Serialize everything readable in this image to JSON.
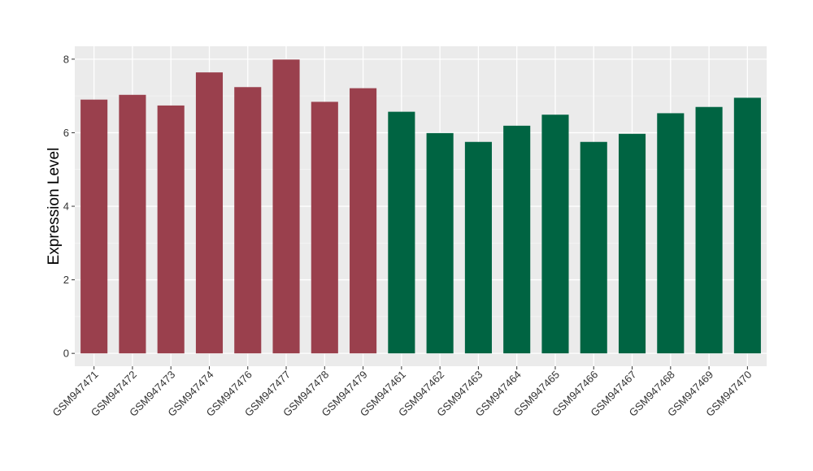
{
  "chart_data": {
    "type": "bar",
    "title": "",
    "xlabel": "",
    "ylabel": "Expression Level",
    "ylim": [
      -0.35,
      8.35
    ],
    "yticks": [
      0,
      2,
      4,
      6,
      8
    ],
    "grid": true,
    "background": "#EBEBEB",
    "categories": [
      "GSM947471",
      "GSM947472",
      "GSM947473",
      "GSM947474",
      "GSM947476",
      "GSM947477",
      "GSM947478",
      "GSM947479",
      "GSM947461",
      "GSM947462",
      "GSM947463",
      "GSM947464",
      "GSM947465",
      "GSM947466",
      "GSM947467",
      "GSM947468",
      "GSM947469",
      "GSM947470"
    ],
    "values": [
      6.9,
      7.03,
      6.74,
      7.64,
      7.24,
      7.99,
      6.84,
      7.21,
      6.57,
      5.99,
      5.75,
      6.19,
      6.49,
      5.75,
      5.97,
      6.53,
      6.7,
      6.95
    ],
    "bar_colors": [
      "#9A404D",
      "#9A404D",
      "#9A404D",
      "#9A404D",
      "#9A404D",
      "#9A404D",
      "#9A404D",
      "#9A404D",
      "#006442",
      "#006442",
      "#006442",
      "#006442",
      "#006442",
      "#006442",
      "#006442",
      "#006442",
      "#006442",
      "#006442"
    ]
  }
}
